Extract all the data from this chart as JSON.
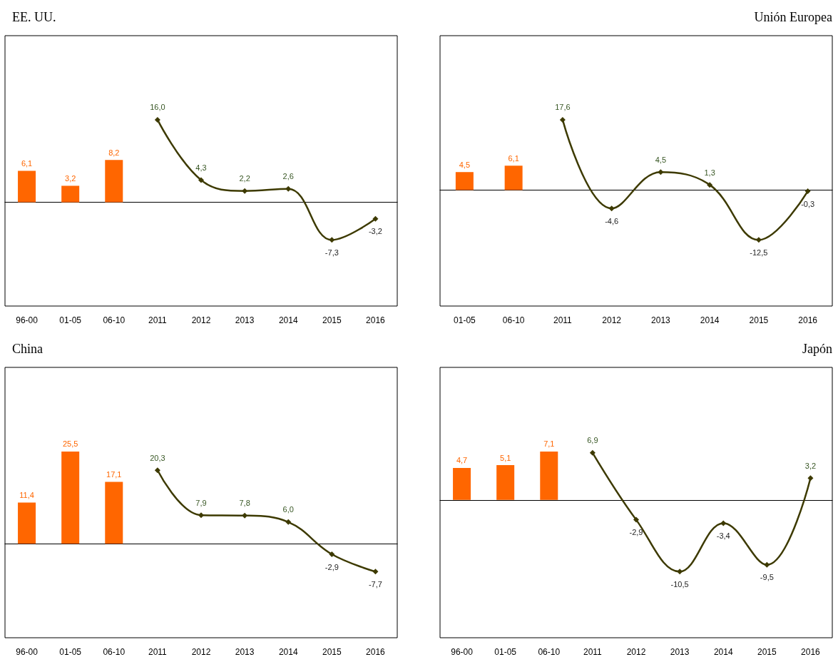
{
  "chart_data": [
    {
      "type": "bar",
      "title": "EE. UU.",
      "categories": [
        "96-00",
        "01-05",
        "06-10",
        "2011",
        "2012",
        "2013",
        "2014",
        "2015",
        "2016"
      ],
      "series": [
        {
          "color": "#ff6600",
          "values": [
            6.1,
            3.2,
            8.2,
            null,
            null,
            null,
            null,
            null,
            null
          ],
          "value_labels": [
            "6,1",
            "3,2",
            "8,2",
            null,
            null,
            null,
            null,
            null,
            null
          ]
        },
        {
          "type": "line",
          "color": "#3d3a00",
          "values": [
            null,
            null,
            null,
            16.0,
            4.3,
            2.2,
            2.6,
            -7.3,
            -3.2
          ],
          "value_labels": [
            null,
            null,
            null,
            "16,0",
            "4,3",
            "2,2",
            "2,6",
            "-7,3",
            "-3,2"
          ]
        }
      ],
      "marker": "diamond"
    },
    {
      "type": "bar",
      "title": "Unión Europea",
      "categories": [
        "01-05",
        "06-10",
        "2011",
        "2012",
        "2013",
        "2014",
        "2015",
        "2016"
      ],
      "series": [
        {
          "color": "#ff6600",
          "values": [
            4.5,
            6.1,
            null,
            null,
            null,
            null,
            null,
            null
          ],
          "value_labels": [
            "4,5",
            "6,1",
            null,
            null,
            null,
            null,
            null,
            null
          ]
        },
        {
          "type": "line",
          "color": "#3d3a00",
          "values": [
            null,
            null,
            17.6,
            -4.6,
            4.5,
            1.3,
            -12.5,
            -0.3
          ],
          "value_labels": [
            null,
            null,
            "17,6",
            "-4,6",
            "4,5",
            "1,3",
            "-12,5",
            "-0,3"
          ]
        }
      ],
      "marker": "diamond"
    },
    {
      "type": "bar",
      "title": "China",
      "categories": [
        "96-00",
        "01-05",
        "06-10",
        "2011",
        "2012",
        "2013",
        "2014",
        "2015",
        "2016"
      ],
      "series": [
        {
          "color": "#ff6600",
          "values": [
            11.4,
            25.5,
            17.1,
            null,
            null,
            null,
            null,
            null,
            null
          ],
          "value_labels": [
            "11,4",
            "25,5",
            "17,1",
            null,
            null,
            null,
            null,
            null,
            null
          ]
        },
        {
          "type": "line",
          "color": "#3d3a00",
          "values": [
            null,
            null,
            null,
            20.3,
            7.9,
            7.8,
            6.0,
            -2.9,
            -7.7
          ],
          "value_labels": [
            null,
            null,
            null,
            "20,3",
            "7,9",
            "7,8",
            "6,0",
            "-2,9",
            "-7,7"
          ]
        }
      ],
      "marker": "diamond"
    },
    {
      "type": "bar",
      "title": "Japón",
      "categories": [
        "96-00",
        "01-05",
        "06-10",
        "2011",
        "2012",
        "2013",
        "2014",
        "2015",
        "2016"
      ],
      "series": [
        {
          "color": "#ff6600",
          "values": [
            4.7,
            5.1,
            7.1,
            null,
            null,
            null,
            null,
            null,
            null
          ],
          "value_labels": [
            "4,7",
            "5,1",
            "7,1",
            null,
            null,
            null,
            null,
            null,
            null
          ]
        },
        {
          "type": "line",
          "color": "#3d3a00",
          "values": [
            null,
            null,
            null,
            6.9,
            -2.9,
            -10.5,
            -3.4,
            -9.5,
            3.2
          ],
          "value_labels": [
            null,
            null,
            null,
            "6,9",
            "-2,9",
            "-10,5",
            "-3,4",
            "-9,5",
            "3,2"
          ]
        }
      ],
      "marker": "diamond"
    }
  ]
}
